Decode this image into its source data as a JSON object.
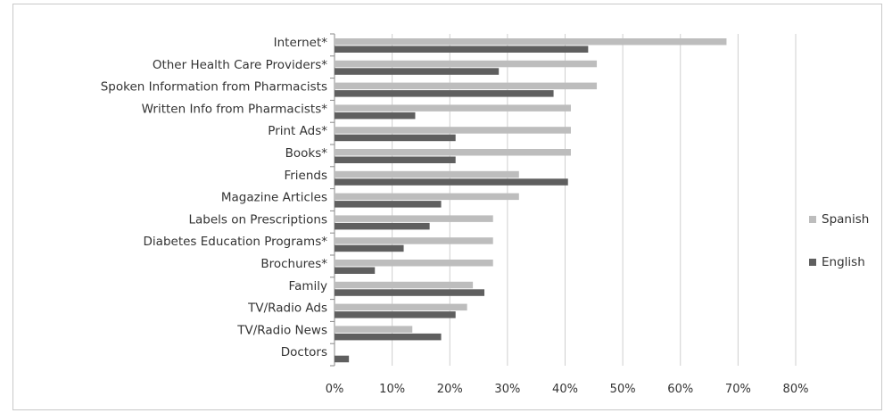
{
  "chart_data": {
    "type": "bar",
    "orientation": "horizontal",
    "categories": [
      "Internet*",
      "Other Health Care Providers*",
      "Spoken Information from Pharmacists",
      "Written Info from Pharmacists*",
      "Print Ads*",
      "Books*",
      "Friends",
      "Magazine Articles",
      "Labels on Prescriptions",
      "Diabetes Education Programs*",
      "Brochures*",
      "Family",
      "TV/Radio Ads",
      "TV/Radio News",
      "Doctors"
    ],
    "series": [
      {
        "name": "Spanish",
        "color": "#bdbdbd",
        "values": [
          68,
          45.5,
          45.5,
          41,
          41,
          41,
          32,
          32,
          27.5,
          27.5,
          27.5,
          24,
          23,
          13.5,
          0
        ]
      },
      {
        "name": "English",
        "color": "#5f5f5f",
        "values": [
          44,
          28.5,
          38,
          14,
          21,
          21,
          40.5,
          18.5,
          16.5,
          12,
          7,
          26,
          21,
          18.5,
          2.5
        ]
      }
    ],
    "xlim": [
      0,
      80
    ],
    "xticks": [
      "0%",
      "10%",
      "20%",
      "30%",
      "40%",
      "50%",
      "60%",
      "70%",
      "80%"
    ],
    "grid": true,
    "legend": "right",
    "title": "",
    "xlabel": "",
    "ylabel": ""
  }
}
